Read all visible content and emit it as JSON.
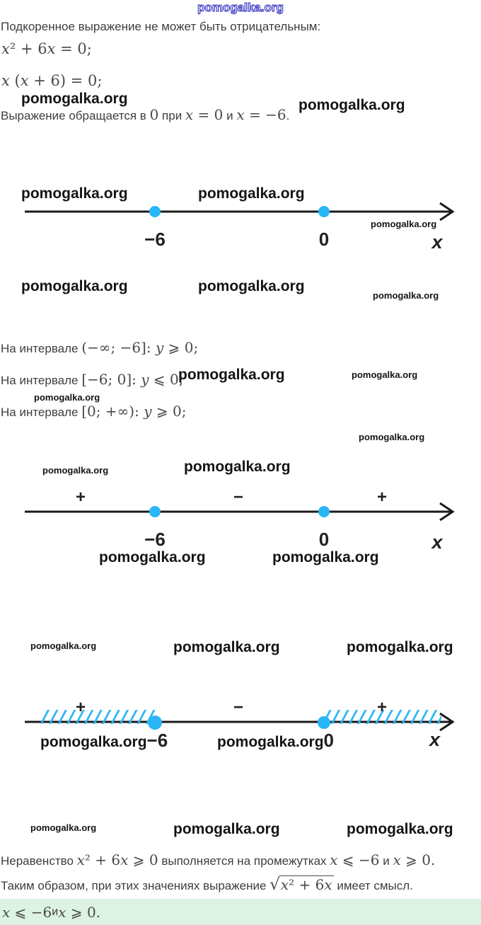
{
  "watermark": {
    "text": "pomogalka.org"
  },
  "colors": {
    "accent_blue": "#29b6f6",
    "watermark_purple": "#4343c6",
    "answer_bg": "#dcf3e3",
    "body_text": "#3e3e3e"
  },
  "solution": {
    "p1": "Подкоренное выражение не может быть отрицательным:",
    "eq1": "x² + 6x = 0;",
    "eq2": "x (x + 6) = 0;",
    "p2": {
      "pre": "Выражение обращается в ",
      "m1": "0",
      "mid": " при ",
      "m2": "x = 0",
      "and": " и ",
      "m3": "x = −6",
      "end": "."
    },
    "intervals": [
      {
        "label": "На интервале ",
        "math": "(−∞; −6]: y ⩾ 0;"
      },
      {
        "label": "На интервале ",
        "math": "[−6; 0]: y ⩽ 0;"
      },
      {
        "label": "На интервале ",
        "math": "[0; +∞): y ⩾ 0;"
      }
    ],
    "p3": {
      "pre": "Неравенство ",
      "m1": "x² + 6x ⩾ 0",
      "mid": " выполняется на промежутках ",
      "m2": "x ⩽ −6",
      "and": " и ",
      "m3": "x ⩾ 0",
      "end": "."
    },
    "p4": {
      "pre": "Таким образом, при этих значениях выражение ",
      "sqrt_sign": "√",
      "radicand": "x² + 6x",
      "end": " имеет смысл."
    },
    "answer": {
      "m1": "x ⩽ −6",
      "and": " и ",
      "m2": "x ⩾ 0",
      "end": "."
    }
  },
  "number_lines": [
    {
      "points": [
        {
          "label": "−6"
        },
        {
          "label": "0"
        }
      ],
      "axis_label": "x"
    },
    {
      "signs": [
        "+",
        "−",
        "+"
      ],
      "points": [
        {
          "label": "−6"
        },
        {
          "label": "0"
        }
      ],
      "axis_label": "x"
    },
    {
      "signs": [
        "+",
        "−",
        "+"
      ],
      "points": [
        {
          "label": "−6"
        },
        {
          "label": "0"
        }
      ],
      "axis_label": "x",
      "shaded_intervals": "x ⩽ −6 и x ⩾ 0"
    }
  ]
}
